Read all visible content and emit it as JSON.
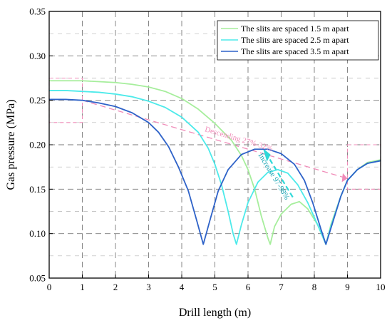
{
  "chart_data": {
    "type": "line",
    "xlabel": "Drill length (m)",
    "ylabel": "Gas pressure (MPa)",
    "xlim": [
      0,
      10
    ],
    "ylim": [
      0.05,
      0.35
    ],
    "xticks": [
      "0",
      "1",
      "2",
      "3",
      "4",
      "5",
      "6",
      "7",
      "8",
      "9",
      "10"
    ],
    "yticks": [
      "0.05",
      "0.10",
      "0.15",
      "0.20",
      "0.25",
      "0.30",
      "0.35"
    ],
    "grid": "dashed",
    "legend_position": "top-right",
    "series": [
      {
        "name": "The slits are spaced 1.5 m apart",
        "color": "#a6ee9c",
        "points": [
          [
            0,
            0.272
          ],
          [
            0.5,
            0.272
          ],
          [
            1,
            0.272
          ],
          [
            1.5,
            0.271
          ],
          [
            2,
            0.27
          ],
          [
            2.5,
            0.268
          ],
          [
            3,
            0.265
          ],
          [
            3.5,
            0.26
          ],
          [
            4,
            0.252
          ],
          [
            4.5,
            0.24
          ],
          [
            5,
            0.224
          ],
          [
            5.5,
            0.205
          ],
          [
            5.8,
            0.188
          ],
          [
            6.0,
            0.172
          ],
          [
            6.2,
            0.15
          ],
          [
            6.4,
            0.12
          ],
          [
            6.6,
            0.095
          ],
          [
            6.67,
            0.088
          ],
          [
            6.8,
            0.108
          ],
          [
            7.0,
            0.122
          ],
          [
            7.3,
            0.133
          ],
          [
            7.55,
            0.136
          ],
          [
            7.8,
            0.128
          ],
          [
            8.1,
            0.11
          ],
          [
            8.35,
            0.088
          ],
          [
            8.5,
            0.11
          ],
          [
            8.8,
            0.142
          ],
          [
            9.0,
            0.16
          ],
          [
            9.3,
            0.172
          ],
          [
            9.6,
            0.18
          ],
          [
            10,
            0.183
          ]
        ]
      },
      {
        "name": "The slits are spaced 2.5 m apart",
        "color": "#4deaea",
        "points": [
          [
            0,
            0.261
          ],
          [
            0.5,
            0.261
          ],
          [
            1,
            0.26
          ],
          [
            1.5,
            0.259
          ],
          [
            2,
            0.257
          ],
          [
            2.5,
            0.254
          ],
          [
            3,
            0.249
          ],
          [
            3.5,
            0.242
          ],
          [
            4,
            0.231
          ],
          [
            4.5,
            0.214
          ],
          [
            4.8,
            0.196
          ],
          [
            5.0,
            0.178
          ],
          [
            5.2,
            0.155
          ],
          [
            5.4,
            0.125
          ],
          [
            5.55,
            0.1
          ],
          [
            5.65,
            0.088
          ],
          [
            5.8,
            0.11
          ],
          [
            6.0,
            0.135
          ],
          [
            6.3,
            0.158
          ],
          [
            6.6,
            0.169
          ],
          [
            6.9,
            0.172
          ],
          [
            7.2,
            0.168
          ],
          [
            7.5,
            0.155
          ],
          [
            7.8,
            0.135
          ],
          [
            8.1,
            0.11
          ],
          [
            8.35,
            0.088
          ],
          [
            8.5,
            0.108
          ],
          [
            8.8,
            0.142
          ],
          [
            9.0,
            0.16
          ],
          [
            9.3,
            0.172
          ],
          [
            9.6,
            0.179
          ],
          [
            10,
            0.182
          ]
        ]
      },
      {
        "name": "The slits are spaced 3.5 m apart",
        "color": "#2e62c8",
        "points": [
          [
            0,
            0.251
          ],
          [
            0.5,
            0.251
          ],
          [
            1,
            0.25
          ],
          [
            1.5,
            0.247
          ],
          [
            2,
            0.243
          ],
          [
            2.5,
            0.236
          ],
          [
            3,
            0.225
          ],
          [
            3.3,
            0.214
          ],
          [
            3.6,
            0.198
          ],
          [
            3.9,
            0.175
          ],
          [
            4.2,
            0.148
          ],
          [
            4.45,
            0.115
          ],
          [
            4.65,
            0.088
          ],
          [
            4.85,
            0.115
          ],
          [
            5.1,
            0.148
          ],
          [
            5.4,
            0.172
          ],
          [
            5.8,
            0.189
          ],
          [
            6.2,
            0.195
          ],
          [
            6.6,
            0.195
          ],
          [
            7.0,
            0.19
          ],
          [
            7.4,
            0.178
          ],
          [
            7.7,
            0.16
          ],
          [
            7.95,
            0.135
          ],
          [
            8.2,
            0.105
          ],
          [
            8.35,
            0.088
          ],
          [
            8.55,
            0.112
          ],
          [
            8.8,
            0.142
          ],
          [
            9.0,
            0.16
          ],
          [
            9.3,
            0.172
          ],
          [
            9.6,
            0.179
          ],
          [
            10,
            0.182
          ]
        ]
      }
    ],
    "annotations": {
      "descending": "Descending 27%-32%",
      "increase": "Increase 97-98%"
    },
    "style": {
      "box_color": "#f08bb8",
      "arrow_color": "#2ed8d8",
      "grid_color": "#7a7a7a"
    }
  }
}
